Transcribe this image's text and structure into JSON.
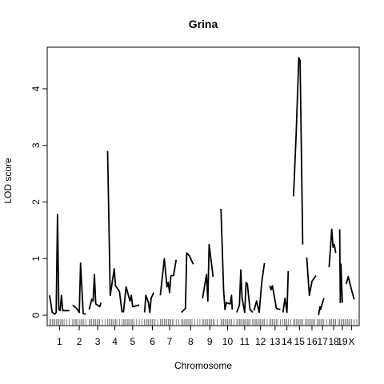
{
  "chart_data": {
    "type": "line",
    "title": "Grina",
    "xlabel": "Chromosome",
    "ylabel": "LOD score",
    "ylim": [
      0,
      4.7
    ],
    "yticks": [
      0,
      1,
      2,
      3,
      4
    ],
    "grid": false,
    "legend": "none",
    "line_color": "#000000",
    "chromosomes": [
      {
        "label": "1",
        "start": 0,
        "end": 15,
        "points": [
          [
            0,
            0.35
          ],
          [
            2,
            0.05
          ],
          [
            4,
            0.02
          ],
          [
            5,
            0.05
          ],
          [
            6,
            1.78
          ],
          [
            7,
            0.1
          ],
          [
            8,
            0.08
          ],
          [
            9,
            0.35
          ],
          [
            10,
            0.08
          ],
          [
            15,
            0.08
          ]
        ]
      },
      {
        "label": "2",
        "start": 17.5,
        "end": 27.5,
        "points": [
          [
            0,
            0.18
          ],
          [
            3,
            0.12
          ],
          [
            5,
            0.05
          ],
          [
            6,
            0.92
          ],
          [
            8,
            0.03
          ],
          [
            10,
            0.02
          ]
        ]
      },
      {
        "label": "3",
        "start": 30,
        "end": 43,
        "points": [
          [
            0,
            0.1
          ],
          [
            2,
            0.28
          ],
          [
            3,
            0.25
          ],
          [
            4,
            0.72
          ],
          [
            5,
            0.2
          ],
          [
            8,
            0.15
          ],
          [
            9,
            0.22
          ]
        ]
      },
      {
        "label": "4",
        "start": 44,
        "end": 55,
        "points": [
          [
            0,
            2.9
          ],
          [
            2,
            0.35
          ],
          [
            5,
            0.82
          ],
          [
            6,
            0.52
          ],
          [
            9,
            0.42
          ],
          [
            11,
            0.05
          ]
        ]
      },
      {
        "label": "5",
        "start": 56,
        "end": 70,
        "points": [
          [
            0,
            0.05
          ],
          [
            2,
            0.5
          ],
          [
            5,
            0.25
          ],
          [
            6,
            0.35
          ],
          [
            7,
            0.15
          ],
          [
            12,
            0.18
          ]
        ]
      },
      {
        "label": "6",
        "start": 72,
        "end": 84,
        "points": [
          [
            0,
            0.05
          ],
          [
            1,
            0.35
          ],
          [
            3,
            0.22
          ],
          [
            4,
            0.05
          ],
          [
            5,
            0.3
          ],
          [
            7,
            0.4
          ]
        ]
      },
      {
        "label": "7",
        "start": 84,
        "end": 98,
        "points": [
          [
            0,
            0.35
          ],
          [
            3,
            1.0
          ],
          [
            5,
            0.5
          ],
          [
            6,
            0.58
          ],
          [
            7,
            0.4
          ],
          [
            8,
            0.7
          ],
          [
            10,
            0.7
          ],
          [
            12,
            0.98
          ]
        ]
      },
      {
        "label": "8",
        "start": 100,
        "end": 114,
        "points": [
          [
            0,
            0.05
          ],
          [
            3,
            0.12
          ],
          [
            4,
            1.1
          ],
          [
            6,
            1.05
          ],
          [
            9,
            0.9
          ]
        ]
      },
      {
        "label": "9",
        "start": 116,
        "end": 127,
        "points": [
          [
            0,
            0.3
          ],
          [
            3,
            0.72
          ],
          [
            4,
            0.25
          ],
          [
            5,
            1.25
          ],
          [
            8,
            0.68
          ]
        ]
      },
      {
        "label": "10",
        "start": 130,
        "end": 140,
        "points": [
          [
            0,
            1.88
          ],
          [
            2,
            0.45
          ],
          [
            3,
            0.1
          ],
          [
            4,
            0.22
          ],
          [
            7,
            0.2
          ],
          [
            8,
            0.35
          ],
          [
            8.5,
            0.1
          ]
        ]
      },
      {
        "label": "11",
        "start": 142,
        "end": 154,
        "points": [
          [
            0,
            0.05
          ],
          [
            2,
            0.18
          ],
          [
            3,
            0.8
          ],
          [
            4,
            0.3
          ],
          [
            6,
            0.05
          ],
          [
            7,
            0.58
          ],
          [
            8,
            0.55
          ],
          [
            10,
            0.1
          ],
          [
            12,
            0.05
          ]
        ]
      },
      {
        "label": "12",
        "start": 155,
        "end": 165,
        "points": [
          [
            0,
            0.08
          ],
          [
            2,
            0.25
          ],
          [
            4,
            0.05
          ],
          [
            6,
            0.6
          ],
          [
            8,
            0.92
          ]
        ]
      },
      {
        "label": "13",
        "start": 167,
        "end": 175,
        "points": [
          [
            0,
            0.52
          ],
          [
            1,
            0.45
          ],
          [
            2,
            0.52
          ],
          [
            5,
            0.12
          ],
          [
            8,
            0.1
          ]
        ]
      },
      {
        "label": "14",
        "start": 177,
        "end": 183,
        "points": [
          [
            0,
            0.05
          ],
          [
            1.5,
            0.3
          ],
          [
            3,
            0.05
          ],
          [
            4,
            0.78
          ]
        ]
      },
      {
        "label": "15",
        "start": 185,
        "end": 194,
        "points": [
          [
            0,
            2.1
          ],
          [
            2,
            3.2
          ],
          [
            4,
            4.55
          ],
          [
            5,
            4.5
          ],
          [
            7,
            1.25
          ]
        ]
      },
      {
        "label": "16",
        "start": 195,
        "end": 203,
        "points": [
          [
            0,
            1.02
          ],
          [
            2,
            0.35
          ],
          [
            4,
            0.6
          ],
          [
            7,
            0.7
          ]
        ]
      },
      {
        "label": "17",
        "start": 204,
        "end": 210,
        "points": [
          [
            0,
            0.0
          ],
          [
            1,
            0.15
          ],
          [
            1.5,
            0.1
          ],
          [
            4,
            0.3
          ]
        ]
      },
      {
        "label": "18",
        "start": 212,
        "end": 219,
        "points": [
          [
            0,
            0.85
          ],
          [
            2,
            1.52
          ],
          [
            3,
            1.2
          ],
          [
            4,
            1.25
          ],
          [
            5,
            1.1
          ]
        ]
      },
      {
        "label": "19",
        "start": 220,
        "end": 224,
        "points": [
          [
            0,
            1.52
          ],
          [
            0.5,
            0.22
          ],
          [
            1,
            0.9
          ],
          [
            2,
            0.22
          ]
        ]
      },
      {
        "label": "X",
        "start": 225,
        "end": 233,
        "points": [
          [
            0,
            0.55
          ],
          [
            1.5,
            0.68
          ],
          [
            4,
            0.45
          ],
          [
            6,
            0.28
          ]
        ]
      }
    ],
    "markers": [
      0,
      1,
      2,
      3,
      4,
      5,
      6,
      7,
      8,
      9,
      10,
      11,
      13,
      15,
      17.5,
      18.5,
      19.5,
      20.5,
      21.5,
      23,
      24,
      25,
      26,
      27.5,
      30,
      31,
      32,
      33,
      34,
      35,
      36,
      37,
      38,
      40,
      42,
      44,
      45,
      46,
      47,
      48,
      49,
      50,
      51,
      53,
      55,
      56,
      57,
      58,
      59,
      60,
      61,
      62,
      63,
      64,
      66,
      68,
      70,
      72,
      73,
      74,
      75,
      76,
      77,
      78,
      79,
      80,
      82,
      84,
      85,
      86,
      87,
      88,
      89,
      90,
      91,
      92,
      93,
      94,
      96,
      98,
      100,
      101,
      102,
      103,
      104,
      105,
      106,
      107,
      108,
      110,
      112,
      114,
      116,
      117,
      118,
      119,
      120,
      121,
      122,
      123,
      124,
      125,
      127,
      130,
      131,
      132,
      133,
      134,
      135,
      136,
      137,
      138,
      140,
      142,
      143,
      144,
      145,
      146,
      147,
      148,
      149,
      150,
      151,
      152,
      154,
      155,
      156,
      157,
      158,
      159,
      160,
      161,
      162,
      163,
      165,
      167,
      168,
      169,
      170,
      171,
      172,
      173,
      175,
      177,
      178,
      179,
      180,
      181,
      183,
      185,
      186,
      187,
      188,
      189,
      190,
      191,
      192,
      194,
      195,
      196,
      197,
      198,
      199,
      200,
      201,
      203,
      204,
      205,
      206,
      207,
      208,
      210,
      212,
      213,
      214,
      215,
      216,
      217,
      219,
      220,
      221,
      222,
      223,
      224,
      225,
      226,
      227,
      228,
      229,
      231,
      233
    ]
  }
}
